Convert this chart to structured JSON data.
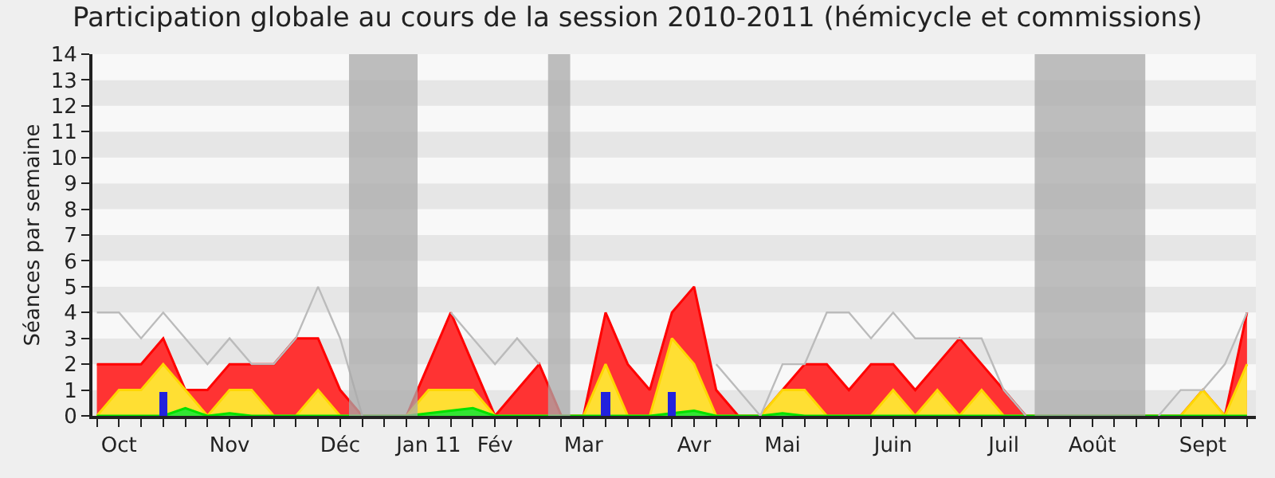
{
  "chart_data": {
    "type": "area",
    "title": "Participation globale au cours de la session 2010-2011 (hémicycle et commissions)",
    "ylabel": "Séances par semaine",
    "categories": [
      null,
      "Oct",
      null,
      null,
      null,
      null,
      "Nov",
      null,
      null,
      null,
      null,
      "Déc",
      null,
      null,
      null,
      "Jan 11",
      null,
      null,
      "Fév",
      null,
      null,
      null,
      "Mar",
      null,
      null,
      null,
      null,
      "Avr",
      null,
      null,
      null,
      "Mai",
      null,
      null,
      null,
      null,
      "Juin",
      null,
      null,
      null,
      null,
      "Juil",
      null,
      null,
      null,
      "Août",
      null,
      null,
      null,
      null,
      "Sept",
      null,
      null
    ],
    "ylim": [
      0,
      14
    ],
    "yticks": [
      0,
      1,
      2,
      3,
      4,
      5,
      6,
      7,
      8,
      9,
      10,
      11,
      12,
      13,
      14
    ],
    "series": [
      {
        "color": "#ff0000",
        "values": [
          2,
          2,
          2,
          3,
          1,
          1,
          2,
          2,
          2,
          3,
          3,
          1,
          0,
          0,
          0,
          2,
          4,
          2,
          0,
          1,
          2,
          0,
          0,
          4,
          2,
          1,
          4,
          5,
          1,
          0,
          0,
          1,
          2,
          2,
          1,
          2,
          2,
          1,
          2,
          3,
          2,
          1,
          0,
          0,
          0,
          0,
          0,
          0,
          0,
          0,
          1,
          0,
          4
        ]
      },
      {
        "color": "#ffd700",
        "values": [
          0,
          1,
          1,
          2,
          1,
          0,
          1,
          1,
          0,
          0,
          1,
          0,
          0,
          0,
          0,
          1,
          1,
          1,
          0,
          0,
          0,
          0,
          0,
          2,
          0,
          0,
          3,
          2,
          0,
          0,
          0,
          1,
          1,
          0,
          0,
          0,
          1,
          0,
          1,
          0,
          1,
          0,
          0,
          0,
          0,
          0,
          0,
          0,
          0,
          0,
          1,
          0,
          2
        ]
      },
      {
        "color": "#00e000",
        "values": [
          0,
          0,
          0,
          0,
          0.3,
          0,
          0.1,
          0,
          0,
          0,
          0,
          0,
          0,
          0,
          0,
          0.1,
          0.2,
          0.3,
          0,
          0,
          0,
          0,
          0,
          0,
          0,
          0,
          0.1,
          0.2,
          0,
          0,
          0,
          0.1,
          0,
          0,
          0,
          0,
          0,
          0,
          0,
          0,
          0,
          0,
          0,
          0,
          0,
          0,
          0,
          0,
          0,
          0,
          0,
          0,
          0
        ]
      },
      {
        "type": "bar",
        "color": "#2222dd",
        "values": [
          null,
          null,
          null,
          0.9,
          null,
          null,
          null,
          null,
          null,
          null,
          null,
          null,
          null,
          null,
          null,
          null,
          null,
          null,
          null,
          null,
          null,
          null,
          null,
          0.9,
          null,
          null,
          0.9,
          null,
          null,
          null,
          null,
          null,
          null,
          null,
          null,
          null,
          null,
          null,
          null,
          null,
          null,
          null,
          null,
          null,
          null,
          null,
          null,
          null,
          null,
          null,
          null,
          null,
          null
        ]
      },
      {
        "type": "line",
        "color": "#bbbbbb",
        "values": [
          4,
          4,
          3,
          4,
          3,
          2,
          3,
          2,
          2,
          3,
          5,
          3,
          0,
          null,
          null,
          null,
          4,
          3,
          2,
          3,
          2,
          null,
          null,
          null,
          null,
          null,
          null,
          null,
          2,
          1,
          0,
          2,
          2,
          4,
          4,
          3,
          4,
          3,
          3,
          3,
          3,
          1,
          0,
          null,
          null,
          null,
          null,
          null,
          0,
          1,
          1,
          2,
          4
        ]
      }
    ]
  }
}
